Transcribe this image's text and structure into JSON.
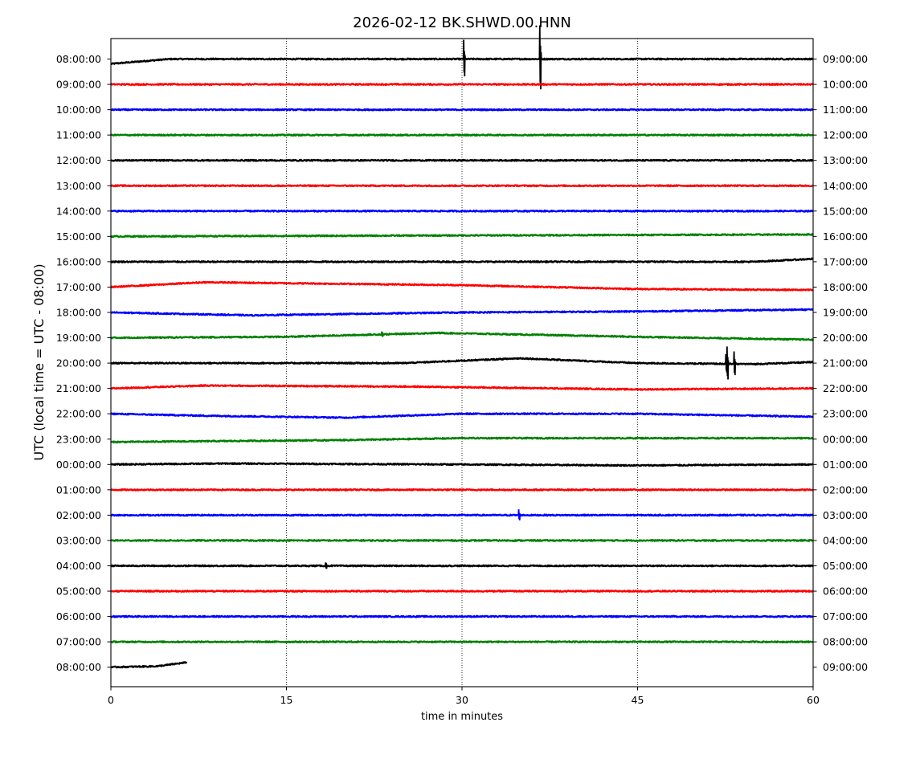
{
  "chart_data": {
    "type": "line",
    "title": "2026-02-12 BK.SHWD.00.HNN",
    "xlabel": "time in minutes",
    "ylabel": "UTC (local time = UTC - 08:00)",
    "xlim": [
      0,
      60
    ],
    "x_ticks": [
      "0",
      "15",
      "30",
      "45",
      "60"
    ],
    "vertical_gridlines_at": [
      15,
      30,
      45
    ],
    "grid": "vertical dotted",
    "colors": [
      "#000000",
      "#ff0000",
      "#0000ff",
      "#008000"
    ],
    "rows": [
      {
        "left": "08:00:00",
        "right": "09:00:00",
        "color": "#000000",
        "start_offset": -0.5,
        "trend": [
          [
            0,
            -0.5
          ],
          [
            5,
            0
          ],
          [
            60,
            0
          ]
        ],
        "bursts": [
          {
            "t": 30.2,
            "amp": 2.0
          },
          {
            "t": 36.7,
            "amp": 3.5
          }
        ]
      },
      {
        "left": "09:00:00",
        "right": "10:00:00",
        "color": "#ff0000",
        "trend": [
          [
            0,
            0
          ],
          [
            60,
            0
          ]
        ],
        "bursts": []
      },
      {
        "left": "10:00:00",
        "right": "11:00:00",
        "color": "#0000ff",
        "trend": [
          [
            0,
            0
          ],
          [
            60,
            0
          ]
        ],
        "bursts": []
      },
      {
        "left": "11:00:00",
        "right": "12:00:00",
        "color": "#008000",
        "trend": [
          [
            0,
            0
          ],
          [
            60,
            0
          ]
        ],
        "bursts": []
      },
      {
        "left": "12:00:00",
        "right": "13:00:00",
        "color": "#000000",
        "trend": [
          [
            0,
            0
          ],
          [
            60,
            0
          ]
        ],
        "bursts": []
      },
      {
        "left": "13:00:00",
        "right": "14:00:00",
        "color": "#ff0000",
        "trend": [
          [
            0,
            0
          ],
          [
            60,
            0
          ]
        ],
        "bursts": []
      },
      {
        "left": "14:00:00",
        "right": "15:00:00",
        "color": "#0000ff",
        "trend": [
          [
            0,
            0
          ],
          [
            60,
            0
          ]
        ],
        "bursts": []
      },
      {
        "left": "15:00:00",
        "right": "16:00:00",
        "color": "#008000",
        "trend": [
          [
            0,
            0
          ],
          [
            60,
            0.2
          ]
        ],
        "bursts": []
      },
      {
        "left": "16:00:00",
        "right": "17:00:00",
        "color": "#000000",
        "trend": [
          [
            0,
            0
          ],
          [
            55,
            0
          ],
          [
            60,
            0.3
          ]
        ],
        "bursts": []
      },
      {
        "left": "17:00:00",
        "right": "18:00:00",
        "color": "#ff0000",
        "trend": [
          [
            0,
            0
          ],
          [
            8,
            0.5
          ],
          [
            30,
            0.2
          ],
          [
            45,
            -0.2
          ],
          [
            60,
            -0.3
          ]
        ],
        "bursts": []
      },
      {
        "left": "18:00:00",
        "right": "19:00:00",
        "color": "#0000ff",
        "trend": [
          [
            0,
            0
          ],
          [
            12,
            -0.3
          ],
          [
            30,
            0
          ],
          [
            45,
            0.1
          ],
          [
            60,
            0.3
          ]
        ],
        "bursts": []
      },
      {
        "left": "19:00:00",
        "right": "20:00:00",
        "color": "#008000",
        "trend": [
          [
            0,
            0
          ],
          [
            15,
            0.1
          ],
          [
            28,
            0.5
          ],
          [
            45,
            0.1
          ],
          [
            60,
            -0.2
          ]
        ],
        "bursts": [
          {
            "t": 23.2,
            "amp": 0.3
          }
        ]
      },
      {
        "left": "20:00:00",
        "right": "21:00:00",
        "color": "#000000",
        "trend": [
          [
            0,
            0
          ],
          [
            25,
            0
          ],
          [
            35,
            0.5
          ],
          [
            45,
            0
          ],
          [
            55,
            -0.1
          ],
          [
            60,
            0.1
          ]
        ],
        "bursts": [
          {
            "t": 52.6,
            "amp": 1.0
          },
          {
            "t": 52.7,
            "amp": 1.8
          },
          {
            "t": 53.3,
            "amp": 1.3
          }
        ]
      },
      {
        "left": "21:00:00",
        "right": "22:00:00",
        "color": "#ff0000",
        "trend": [
          [
            0,
            0
          ],
          [
            8,
            0.3
          ],
          [
            25,
            0.2
          ],
          [
            45,
            -0.1
          ],
          [
            60,
            0
          ]
        ],
        "bursts": []
      },
      {
        "left": "22:00:00",
        "right": "23:00:00",
        "color": "#0000ff",
        "trend": [
          [
            0,
            0
          ],
          [
            8,
            -0.2
          ],
          [
            20,
            -0.4
          ],
          [
            30,
            0
          ],
          [
            45,
            0
          ],
          [
            60,
            -0.3
          ]
        ],
        "bursts": []
      },
      {
        "left": "23:00:00",
        "right": "00:00:00",
        "color": "#008000",
        "start_offset": -0.3,
        "trend": [
          [
            0,
            -0.3
          ],
          [
            20,
            -0.1
          ],
          [
            30,
            0.1
          ],
          [
            60,
            0.1
          ]
        ],
        "bursts": []
      },
      {
        "left": "00:00:00",
        "right": "01:00:00",
        "color": "#000000",
        "trend": [
          [
            0,
            0
          ],
          [
            10,
            0.1
          ],
          [
            30,
            0
          ],
          [
            45,
            -0.1
          ],
          [
            60,
            0
          ]
        ],
        "bursts": []
      },
      {
        "left": "01:00:00",
        "right": "02:00:00",
        "color": "#ff0000",
        "trend": [
          [
            0,
            0
          ],
          [
            60,
            0
          ]
        ],
        "bursts": []
      },
      {
        "left": "02:00:00",
        "right": "03:00:00",
        "color": "#0000ff",
        "trend": [
          [
            0,
            0
          ],
          [
            60,
            0
          ]
        ],
        "bursts": [
          {
            "t": 34.9,
            "amp": 0.6
          }
        ]
      },
      {
        "left": "03:00:00",
        "right": "04:00:00",
        "color": "#008000",
        "trend": [
          [
            0,
            0
          ],
          [
            60,
            0
          ]
        ],
        "bursts": []
      },
      {
        "left": "04:00:00",
        "right": "05:00:00",
        "color": "#000000",
        "trend": [
          [
            0,
            0
          ],
          [
            60,
            0
          ]
        ],
        "bursts": [
          {
            "t": 18.4,
            "amp": 0.35
          }
        ]
      },
      {
        "left": "05:00:00",
        "right": "06:00:00",
        "color": "#ff0000",
        "trend": [
          [
            0,
            0
          ],
          [
            60,
            0
          ]
        ],
        "bursts": []
      },
      {
        "left": "06:00:00",
        "right": "07:00:00",
        "color": "#0000ff",
        "trend": [
          [
            0,
            0
          ],
          [
            60,
            0
          ]
        ],
        "bursts": []
      },
      {
        "left": "07:00:00",
        "right": "08:00:00",
        "color": "#008000",
        "trend": [
          [
            0,
            0
          ],
          [
            60,
            0
          ]
        ],
        "bursts": []
      },
      {
        "left": "08:00:00",
        "right": "09:00:00",
        "color": "#000000",
        "end_minute": 6.5,
        "trend": [
          [
            0,
            0
          ],
          [
            4,
            0.1
          ],
          [
            6.5,
            0.5
          ]
        ],
        "bursts": []
      }
    ]
  }
}
